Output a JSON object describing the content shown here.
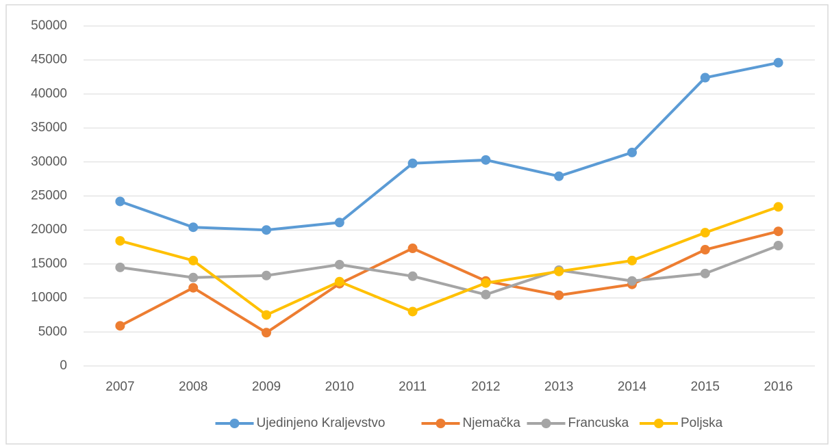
{
  "chart_data": {
    "type": "line",
    "categories": [
      "2007",
      "2008",
      "2009",
      "2010",
      "2011",
      "2012",
      "2013",
      "2014",
      "2015",
      "2016"
    ],
    "series": [
      {
        "name": "Ujedinjeno Kraljevstvo",
        "color": "#5b9bd5",
        "values": [
          24200,
          20400,
          20000,
          21100,
          29800,
          30300,
          27900,
          31400,
          42400,
          44600
        ]
      },
      {
        "name": "Njemačka",
        "color": "#ed7d31",
        "values": [
          5900,
          11500,
          4900,
          12100,
          17300,
          12500,
          10400,
          12000,
          17100,
          19800
        ]
      },
      {
        "name": "Francuska",
        "color": "#a5a5a5",
        "values": [
          14500,
          13000,
          13300,
          14900,
          13200,
          10500,
          14100,
          12500,
          13600,
          17700
        ]
      },
      {
        "name": "Poljska",
        "color": "#ffc000",
        "values": [
          18400,
          15500,
          7500,
          12400,
          8000,
          12200,
          13900,
          15500,
          19600,
          23400
        ]
      }
    ],
    "ylim": [
      0,
      50000
    ],
    "yticks": [
      0,
      5000,
      10000,
      15000,
      20000,
      25000,
      30000,
      35000,
      40000,
      45000,
      50000
    ],
    "grid": true,
    "legend": "bottom"
  }
}
